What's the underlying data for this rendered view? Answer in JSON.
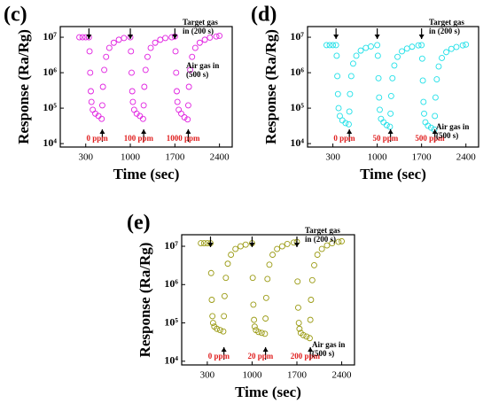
{
  "chart_data": [
    {
      "type": "scatter",
      "panel_label": "(c)",
      "xlabel": "Time (sec)",
      "ylabel": "Response (Ra/Rg)",
      "color": "#e020e0",
      "ylog": true,
      "xlim": [
        -100,
        2600
      ],
      "xticks": [
        300,
        1000,
        1700,
        2400
      ],
      "ylim": [
        8000,
        20000000
      ],
      "yticks": [
        {
          "value": 10000,
          "label": "10⁴"
        },
        {
          "value": 100000,
          "label": "10⁵"
        },
        {
          "value": 1000000,
          "label": "10⁶"
        },
        {
          "value": 10000000,
          "label": "10⁷"
        }
      ],
      "concentrations": [
        "0 ppm",
        "100 ppm",
        "1000 ppm"
      ],
      "target_label": [
        "Target gas",
        "in (200 s)"
      ],
      "air_label": [
        "Air gas in",
        "(500 s)"
      ],
      "x": [
        200,
        250,
        300,
        350,
        360,
        370,
        380,
        390,
        410,
        450,
        500,
        550,
        560,
        570,
        590,
        620,
        670,
        740,
        820,
        900,
        1000,
        1010,
        1020,
        1030,
        1040,
        1060,
        1100,
        1150,
        1200,
        1210,
        1220,
        1240,
        1270,
        1320,
        1390,
        1470,
        1550,
        1650,
        1700,
        1710,
        1720,
        1730,
        1740,
        1760,
        1800,
        1850,
        1900,
        1910,
        1920,
        1940,
        1970,
        2020,
        2090,
        2170,
        2250,
        2350,
        2400
      ],
      "y": [
        10000000,
        10000000,
        10000000,
        10000000,
        4000000,
        1000000,
        300000,
        150000,
        90000,
        70000,
        60000,
        50000,
        120000,
        400000,
        1200000,
        2800000,
        5000000,
        7000000,
        8500000,
        9500000,
        10000000,
        4000000,
        1000000,
        300000,
        150000,
        90000,
        70000,
        60000,
        50000,
        120000,
        400000,
        1200000,
        2800000,
        5000000,
        7000000,
        8500000,
        9500000,
        10000000,
        10500000,
        4000000,
        1000000,
        300000,
        150000,
        90000,
        70000,
        55000,
        48000,
        120000,
        400000,
        1200000,
        2800000,
        5000000,
        7000000,
        8500000,
        9800000,
        10500000,
        11000000
      ]
    },
    {
      "type": "scatter",
      "panel_label": "(d)",
      "xlabel": "Time (sec)",
      "ylabel": "Response (Ra/Rg)",
      "color": "#20e0e8",
      "ylog": true,
      "xlim": [
        -100,
        2600
      ],
      "xticks": [
        300,
        1000,
        1700,
        2400
      ],
      "ylim": [
        8000,
        20000000
      ],
      "yticks": [
        {
          "value": 10000,
          "label": "10⁴"
        },
        {
          "value": 100000,
          "label": "10⁵"
        },
        {
          "value": 1000000,
          "label": "10⁶"
        },
        {
          "value": 10000000,
          "label": "10⁷"
        }
      ],
      "concentrations": [
        "0 ppm",
        "50 ppm",
        "500 ppm"
      ],
      "target_label": [
        "Target gas",
        "in (200 s)"
      ],
      "air_label": [
        "Air gas in",
        "(500 s)"
      ],
      "x": [
        200,
        250,
        300,
        350,
        360,
        370,
        380,
        390,
        410,
        450,
        500,
        550,
        560,
        570,
        590,
        620,
        670,
        740,
        820,
        900,
        1000,
        1010,
        1020,
        1030,
        1040,
        1060,
        1100,
        1150,
        1200,
        1210,
        1220,
        1240,
        1270,
        1320,
        1390,
        1470,
        1550,
        1650,
        1700,
        1710,
        1720,
        1730,
        1740,
        1760,
        1800,
        1850,
        1900,
        1910,
        1920,
        1940,
        1970,
        2020,
        2090,
        2170,
        2250,
        2350,
        2400
      ],
      "y": [
        6000000,
        6000000,
        6000000,
        6000000,
        3000000,
        800000,
        250000,
        100000,
        60000,
        45000,
        38000,
        35000,
        80000,
        250000,
        800000,
        1800000,
        3000000,
        4200000,
        5000000,
        5500000,
        6000000,
        3000000,
        700000,
        200000,
        90000,
        50000,
        40000,
        33000,
        30000,
        70000,
        220000,
        700000,
        1600000,
        2800000,
        4000000,
        4800000,
        5400000,
        5900000,
        6000000,
        2500000,
        600000,
        150000,
        70000,
        40000,
        32000,
        28000,
        25000,
        60000,
        200000,
        650000,
        1500000,
        2600000,
        3800000,
        4700000,
        5300000,
        5900000,
        6200000
      ]
    },
    {
      "type": "scatter",
      "panel_label": "(e)",
      "xlabel": "Time (sec)",
      "ylabel": "Response (Ra/Rg)",
      "color": "#9a9a12",
      "ylog": true,
      "xlim": [
        -100,
        2600
      ],
      "xticks": [
        300,
        1000,
        1700,
        2400
      ],
      "ylim": [
        8000,
        20000000
      ],
      "yticks": [
        {
          "value": 10000,
          "label": "10⁴"
        },
        {
          "value": 100000,
          "label": "10⁵"
        },
        {
          "value": 1000000,
          "label": "10⁶"
        },
        {
          "value": 10000000,
          "label": "10⁷"
        }
      ],
      "concentrations": [
        "0 ppm",
        "20 ppm",
        "200 ppm"
      ],
      "target_label": [
        "Target gas",
        "in (200 s)"
      ],
      "air_label": [
        "Air gas in",
        "(500 s)"
      ],
      "x": [
        200,
        250,
        300,
        350,
        360,
        370,
        380,
        390,
        410,
        450,
        500,
        550,
        560,
        570,
        590,
        620,
        670,
        740,
        820,
        900,
        1000,
        1010,
        1020,
        1030,
        1040,
        1060,
        1100,
        1150,
        1200,
        1210,
        1220,
        1240,
        1270,
        1320,
        1390,
        1470,
        1550,
        1650,
        1700,
        1710,
        1720,
        1730,
        1740,
        1760,
        1800,
        1850,
        1900,
        1910,
        1920,
        1940,
        1970,
        2020,
        2090,
        2170,
        2250,
        2350,
        2400
      ],
      "y": [
        12000000,
        12000000,
        12000000,
        12000000,
        2000000,
        400000,
        150000,
        100000,
        80000,
        70000,
        65000,
        60000,
        150000,
        500000,
        1500000,
        3500000,
        6000000,
        8500000,
        10000000,
        11000000,
        12000000,
        1500000,
        300000,
        120000,
        80000,
        65000,
        58000,
        55000,
        52000,
        130000,
        450000,
        1400000,
        3300000,
        6000000,
        8500000,
        10000000,
        11500000,
        12500000,
        13000000,
        1200000,
        250000,
        100000,
        70000,
        55000,
        48000,
        44000,
        40000,
        120000,
        400000,
        1300000,
        3200000,
        6000000,
        8500000,
        10500000,
        12000000,
        13000000,
        13500000
      ]
    }
  ]
}
